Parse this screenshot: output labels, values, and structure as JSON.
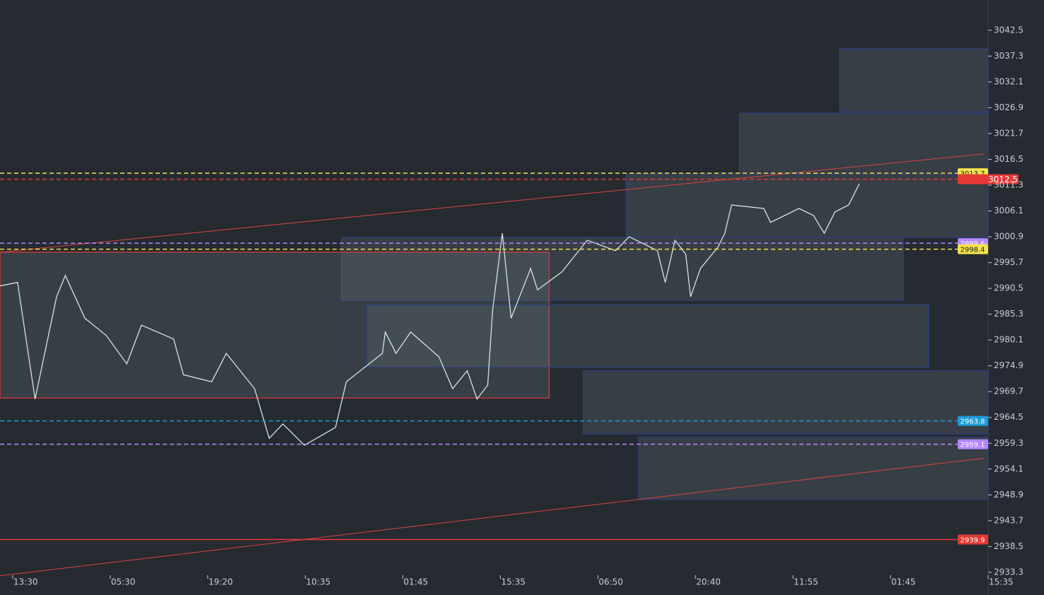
{
  "chart_data": {
    "type": "line",
    "xlim": [
      -0.13,
      10
    ],
    "ylim": [
      2933.0,
      3048.6
    ],
    "xticks": [
      {
        "value": 0,
        "label": "13:30"
      },
      {
        "value": 1,
        "label": "05:30"
      },
      {
        "value": 2,
        "label": "19:20"
      },
      {
        "value": 3,
        "label": "10:35"
      },
      {
        "value": 4,
        "label": "01:45"
      },
      {
        "value": 5,
        "label": "15:35"
      },
      {
        "value": 6,
        "label": "06:50"
      },
      {
        "value": 7,
        "label": "20:40"
      },
      {
        "value": 8,
        "label": "11:55"
      },
      {
        "value": 9,
        "label": "01:45"
      },
      {
        "value": 10,
        "label": "15:35"
      }
    ],
    "yticks": [
      3042.5,
      3037.3,
      3032.1,
      3026.9,
      3021.7,
      3016.5,
      3011.3,
      3006.1,
      3000.9,
      2995.7,
      2990.5,
      2985.3,
      2980.1,
      2974.9,
      2969.7,
      2964.5,
      2959.3,
      2954.1,
      2948.9,
      2943.7,
      2938.5,
      2933.3
    ],
    "series": [
      {
        "color": "#cfe8e2",
        "x": [
          -0.13,
          0.05,
          0.23,
          0.45,
          0.54,
          0.74,
          0.96,
          1.17,
          1.32,
          1.65,
          1.75,
          2.04,
          2.19,
          2.48,
          2.63,
          2.77,
          2.99,
          3.31,
          3.42,
          3.79,
          3.82,
          3.93,
          4.08,
          4.37,
          4.51,
          4.66,
          4.76,
          4.87,
          4.92,
          5.02,
          5.11,
          5.31,
          5.38,
          5.63,
          5.89,
          6.18,
          6.32,
          6.61,
          6.69,
          6.79,
          6.9,
          6.95,
          7.05,
          7.23,
          7.3,
          7.37,
          7.7,
          7.77,
          8.06,
          8.21,
          8.32,
          8.43,
          8.57,
          8.68
        ],
        "values": [
          2991.0,
          2991.7,
          2968.2,
          2988.8,
          2993.1,
          2984.5,
          2981.0,
          2975.3,
          2983.1,
          2980.3,
          2973.1,
          2971.7,
          2977.4,
          2970.3,
          2960.3,
          2963.2,
          2958.9,
          2962.5,
          2971.7,
          2977.4,
          2981.7,
          2977.4,
          2981.7,
          2976.7,
          2970.3,
          2973.9,
          2968.2,
          2971.0,
          2986.0,
          3001.6,
          2984.5,
          2994.5,
          2990.2,
          2993.8,
          3000.2,
          2998.1,
          3000.9,
          2998.1,
          2991.7,
          3000.2,
          2997.4,
          2988.8,
          2994.5,
          2998.8,
          3001.6,
          3007.3,
          3006.6,
          3003.8,
          3006.6,
          3005.2,
          3001.6,
          3005.9,
          3007.3,
          3011.6
        ]
      }
    ],
    "zones": [
      {
        "x": [
          8.48,
          10.0
        ],
        "y": [
          3038.8,
          3026.1
        ],
        "border": "#2f3f78"
      },
      {
        "x": [
          7.45,
          10.0
        ],
        "y": [
          3025.8,
          3013.6
        ],
        "border": "#2f3f78"
      },
      {
        "x": [
          6.29,
          10.0
        ],
        "y": [
          3013.6,
          3000.8
        ],
        "border": "#2f3f78"
      },
      {
        "x": [
          3.37,
          9.13
        ],
        "y": [
          3000.8,
          2988.1
        ],
        "border": "#2f3f78"
      },
      {
        "x": [
          -0.13,
          5.5
        ],
        "y": [
          2997.8,
          2968.4
        ],
        "border": "#c0393b"
      },
      {
        "x": [
          3.63,
          9.39
        ],
        "y": [
          2987.2,
          2974.6
        ],
        "border": "#2f3f78"
      },
      {
        "x": [
          5.85,
          10.0
        ],
        "y": [
          2973.9,
          2961.2
        ],
        "border": "#2f3f78"
      },
      {
        "x": [
          6.42,
          10.0
        ],
        "y": [
          2960.5,
          2948.0
        ],
        "border": "#2f3f78"
      }
    ],
    "trendlines": [
      {
        "x": [
          -0.13,
          9.96
        ],
        "y": [
          2997.8,
          3017.6
        ],
        "color": "#d9443f"
      },
      {
        "x": [
          -0.13,
          9.96
        ],
        "y": [
          2932.6,
          2956.3
        ],
        "color": "#d9443f"
      }
    ],
    "levels": [
      {
        "value": 3013.7,
        "color": "#f3e24a",
        "style": "dashed",
        "label_text": "#222222"
      },
      {
        "value": 3012.5,
        "color": "#e53935",
        "style": "dashed",
        "label_text": "#ffffff",
        "current": true
      },
      {
        "value": 2999.6,
        "color": "#b388ff",
        "style": "dashed",
        "label_text": "#ffffff"
      },
      {
        "value": 2998.4,
        "color": "#f3e24a",
        "style": "dashed",
        "label_text": "#222222"
      },
      {
        "value": 2963.8,
        "color": "#1e9bd7",
        "style": "dashed",
        "label_text": "#ffffff"
      },
      {
        "value": 2959.1,
        "color": "#b388ff",
        "style": "dashed",
        "label_text": "#ffffff"
      },
      {
        "value": 2939.9,
        "color": "#e53935",
        "style": "solid",
        "label_text": "#ffffff"
      }
    ]
  }
}
